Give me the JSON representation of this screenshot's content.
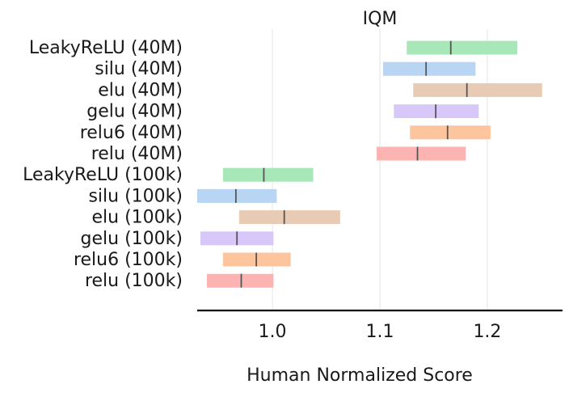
{
  "chart_data": {
    "type": "interval",
    "title": "IQM",
    "xlabel": "Human Normalized Score",
    "xlim": [
      0.93,
      1.27
    ],
    "xticks": [
      1.0,
      1.1,
      1.2
    ],
    "xtick_labels": [
      "1.0",
      "1.1",
      "1.2"
    ],
    "grid": "vertical",
    "categories": [
      {
        "label": "LeakyReLU (40M)",
        "low": 1.125,
        "median": 1.166,
        "high": 1.228,
        "color": "#a8e8b8"
      },
      {
        "label": "silu (40M)",
        "low": 1.103,
        "median": 1.143,
        "high": 1.189,
        "color": "#b8d6f4"
      },
      {
        "label": "elu (40M)",
        "low": 1.131,
        "median": 1.181,
        "high": 1.251,
        "color": "#e8cbb5"
      },
      {
        "label": "gelu (40M)",
        "low": 1.113,
        "median": 1.152,
        "high": 1.192,
        "color": "#d8c8fa"
      },
      {
        "label": "relu6 (40M)",
        "low": 1.128,
        "median": 1.163,
        "high": 1.203,
        "color": "#fcc59e"
      },
      {
        "label": "relu (40M)",
        "low": 1.097,
        "median": 1.135,
        "high": 1.18,
        "color": "#fdb3b1"
      },
      {
        "label": "LeakyReLU (100k)",
        "low": 0.954,
        "median": 0.992,
        "high": 1.038,
        "color": "#a8e8b8"
      },
      {
        "label": "silu (100k)",
        "low": 0.93,
        "median": 0.966,
        "high": 1.004,
        "color": "#b8d6f4"
      },
      {
        "label": "elu (100k)",
        "low": 0.969,
        "median": 1.011,
        "high": 1.063,
        "color": "#e8cbb5"
      },
      {
        "label": "gelu (100k)",
        "low": 0.933,
        "median": 0.967,
        "high": 1.001,
        "color": "#d8c8fa"
      },
      {
        "label": "relu6 (100k)",
        "low": 0.954,
        "median": 0.985,
        "high": 1.017,
        "color": "#fcc59e"
      },
      {
        "label": "relu (100k)",
        "low": 0.939,
        "median": 0.971,
        "high": 1.001,
        "color": "#fdb3b1"
      }
    ]
  }
}
